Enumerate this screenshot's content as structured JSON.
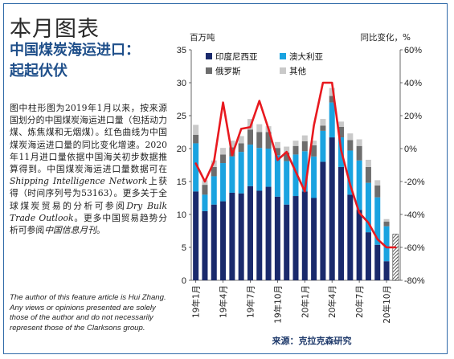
{
  "page": {
    "title": "本月图表",
    "subtitle_lines": [
      "中国煤炭海运进口：",
      "起起伏伏"
    ],
    "description": [
      {
        "t": "图中柱形图为2019年1月以来，按来源国划分的中国煤炭海运进口量（包括动力煤、炼焦煤和无烟煤）。红色曲线为中国煤炭海运进口量的同比变化增速。2020年11月进口量依据中国海关初步数据推算得到。中国煤炭海运进口量数据可在",
        "i": false
      },
      {
        "t": "Shipping Intelligence Network",
        "i": true
      },
      {
        "t": "上获得（时间序列号为53163）。更多关于全球煤炭贸易的分析可参阅",
        "i": false
      },
      {
        "t": "Dry Bulk Trade Outlook",
        "i": true
      },
      {
        "t": "。更多中国贸易趋势分析可参阅",
        "i": false
      },
      {
        "t": "中国信息月刊",
        "i": true
      },
      {
        "t": "。",
        "i": false
      }
    ],
    "author_note": "The author of this feature article is Hui Zhang. Any views or opinions presented are solely those of the author and do not necessarily represent those of the Clarksons group."
  },
  "chart_data": {
    "type": "bar",
    "stacked": true,
    "left_unit": "百万吨",
    "right_unit": "同比变化，%",
    "source": "来源：克拉克森研究",
    "ylim": [
      0,
      35
    ],
    "yticks": [
      0,
      5,
      10,
      15,
      20,
      25,
      30,
      35
    ],
    "y2lim": [
      -80,
      60
    ],
    "y2ticks": [
      "60%",
      "40%",
      "20%",
      "0%",
      "-20%",
      "-40%",
      "-60%",
      "-80%"
    ],
    "y2tick_values": [
      60,
      40,
      20,
      0,
      -20,
      -40,
      -60,
      -80
    ],
    "x_tick_labels": [
      "19年1月",
      "19年4月",
      "19年7月",
      "19年10月",
      "20年1月",
      "20年4月",
      "20年7月",
      "20年10月"
    ],
    "x_tick_index": [
      0,
      3,
      6,
      9,
      12,
      15,
      18,
      21
    ],
    "months": 23,
    "series": [
      {
        "name": "印度尼西亚",
        "color": "#1a2a6c",
        "values": [
          13.5,
          10.5,
          11.5,
          12,
          13.3,
          13.2,
          14.3,
          13.6,
          14.2,
          12.7,
          11.5,
          12.8,
          13.5,
          12.5,
          18,
          21.7,
          17.2,
          13,
          10.7,
          7.3,
          5.4,
          2.9,
          2.2
        ]
      },
      {
        "name": "澳大利亚",
        "color": "#1aa3e0",
        "values": [
          7.3,
          2.5,
          4.3,
          5.8,
          5.5,
          6.3,
          6.3,
          6.5,
          5.8,
          6.3,
          6.6,
          6.3,
          6.1,
          6.3,
          4.7,
          5.3,
          4.5,
          6.7,
          7.5,
          7.5,
          7.2,
          5.3,
          1.8
        ]
      },
      {
        "name": "俄罗斯",
        "color": "#6d6d6d",
        "values": [
          1.3,
          1.5,
          1.4,
          1.3,
          1.4,
          1.3,
          2.3,
          2.4,
          2.5,
          1.1,
          1.3,
          1.3,
          1.5,
          1.7,
          0.8,
          1.0,
          1.6,
          1.6,
          2.2,
          2.4,
          1.8,
          0.7,
          0.6
        ]
      },
      {
        "name": "其他",
        "color": "#c9c9c9",
        "values": [
          1.5,
          0.7,
          1.0,
          1.0,
          1.0,
          1.1,
          1.6,
          1.2,
          0.9,
          0.9,
          0.9,
          0.8,
          0.9,
          0.7,
          1.0,
          1.2,
          0.8,
          1.0,
          1.0,
          1.1,
          0.8,
          0.4,
          0.3
        ]
      }
    ],
    "hatched_last_bar": true,
    "hatched_total": 7.0,
    "yoy": {
      "color": "#e8191f",
      "values": [
        -9,
        -20,
        -8,
        28,
        -4,
        12,
        13,
        29,
        12,
        -7,
        -2,
        -14,
        -26,
        14,
        40,
        40,
        -1,
        -22,
        -39,
        -45,
        -55,
        -60,
        -60
      ]
    }
  }
}
